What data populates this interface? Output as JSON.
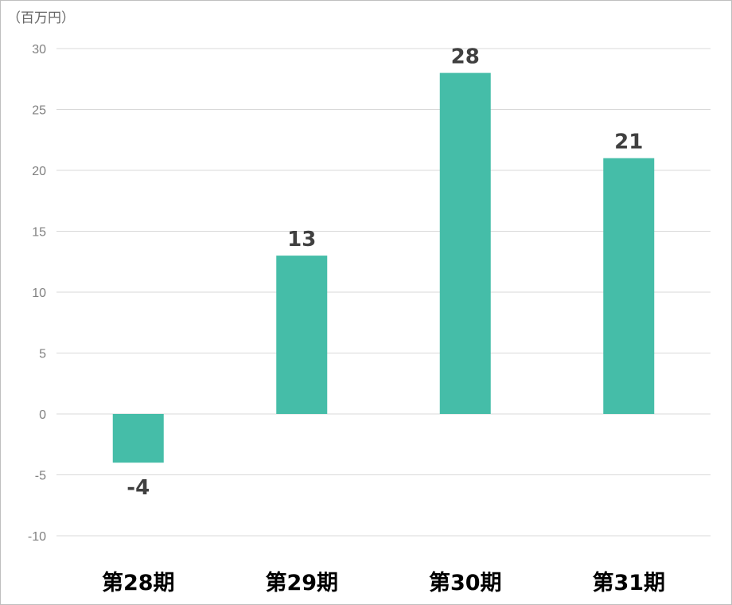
{
  "chart_data": {
    "type": "bar",
    "unit_label": "（百万円）",
    "categories": [
      "第28期",
      "第29期",
      "第30期",
      "第31期"
    ],
    "values": [
      -4,
      13,
      28,
      21
    ],
    "data_labels": [
      "-4",
      "13",
      "28",
      "21"
    ],
    "ylim": [
      -10,
      30
    ],
    "yticks": [
      30,
      25,
      20,
      15,
      10,
      5,
      0,
      -5,
      -10
    ],
    "grid": true,
    "bar_color": "#45BDA8"
  }
}
